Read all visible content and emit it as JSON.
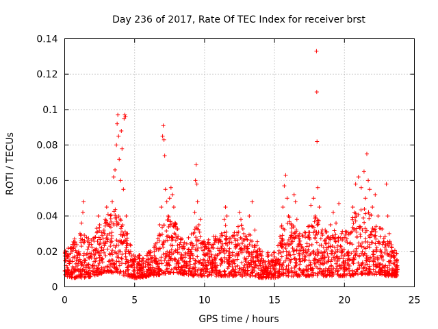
{
  "chart_data": {
    "type": "scatter",
    "title": "Day 236 of 2017, Rate Of TEC Index for receiver brst",
    "xlabel": "GPS time / hours",
    "ylabel": "ROTI / TECUs",
    "xlim": [
      0,
      25
    ],
    "ylim": [
      0,
      0.14
    ],
    "xticks": [
      0,
      5,
      10,
      15,
      20,
      25
    ],
    "xtick_labels": [
      "0",
      "5",
      "10",
      "15",
      "20",
      "25"
    ],
    "yticks": [
      0,
      0.02,
      0.04,
      0.06,
      0.08,
      0.1,
      0.12,
      0.14
    ],
    "ytick_labels": [
      "0",
      "0.02",
      "0.04",
      "0.06",
      "0.08",
      "0.1",
      "0.12",
      "0.14"
    ],
    "grid": true,
    "marker": "+",
    "color": "#ff0000",
    "series": [
      {
        "name": "ROTI",
        "points": [
          [
            0.0,
            0.009
          ],
          [
            0.1,
            0.012
          ],
          [
            0.2,
            0.018
          ],
          [
            0.3,
            0.008
          ],
          [
            0.4,
            0.015
          ],
          [
            0.5,
            0.022
          ],
          [
            0.6,
            0.01
          ],
          [
            0.7,
            0.027
          ],
          [
            0.8,
            0.013
          ],
          [
            0.9,
            0.006
          ],
          [
            1.0,
            0.02
          ],
          [
            1.1,
            0.03
          ],
          [
            1.2,
            0.036
          ],
          [
            1.3,
            0.042
          ],
          [
            1.35,
            0.048
          ],
          [
            1.4,
            0.025
          ],
          [
            1.5,
            0.015
          ],
          [
            1.6,
            0.008
          ],
          [
            1.7,
            0.011
          ],
          [
            1.8,
            0.019
          ],
          [
            1.9,
            0.024
          ],
          [
            2.0,
            0.012
          ],
          [
            2.1,
            0.018
          ],
          [
            2.2,
            0.028
          ],
          [
            2.3,
            0.033
          ],
          [
            2.4,
            0.04
          ],
          [
            2.5,
            0.035
          ],
          [
            2.6,
            0.022
          ],
          [
            2.7,
            0.016
          ],
          [
            2.8,
            0.031
          ],
          [
            2.9,
            0.038
          ],
          [
            3.0,
            0.045
          ],
          [
            3.1,
            0.041
          ],
          [
            3.2,
            0.03
          ],
          [
            3.3,
            0.025
          ],
          [
            3.4,
            0.048
          ],
          [
            3.5,
            0.062
          ],
          [
            3.6,
            0.066
          ],
          [
            3.7,
            0.08
          ],
          [
            3.75,
            0.092
          ],
          [
            3.8,
            0.097
          ],
          [
            3.85,
            0.085
          ],
          [
            3.9,
            0.072
          ],
          [
            4.0,
            0.06
          ],
          [
            4.05,
            0.088
          ],
          [
            4.1,
            0.078
          ],
          [
            4.2,
            0.055
          ],
          [
            4.25,
            0.095
          ],
          [
            4.3,
            0.097
          ],
          [
            4.35,
            0.096
          ],
          [
            4.4,
            0.04
          ],
          [
            4.5,
            0.03
          ],
          [
            4.6,
            0.02
          ],
          [
            4.7,
            0.015
          ],
          [
            4.8,
            0.012
          ],
          [
            4.9,
            0.018
          ],
          [
            5.0,
            0.01
          ],
          [
            5.2,
            0.008
          ],
          [
            5.4,
            0.012
          ],
          [
            5.6,
            0.009
          ],
          [
            5.8,
            0.014
          ],
          [
            6.0,
            0.011
          ],
          [
            6.2,
            0.016
          ],
          [
            6.4,
            0.02
          ],
          [
            6.6,
            0.025
          ],
          [
            6.8,
            0.035
          ],
          [
            6.9,
            0.045
          ],
          [
            7.0,
            0.085
          ],
          [
            7.05,
            0.091
          ],
          [
            7.1,
            0.083
          ],
          [
            7.15,
            0.074
          ],
          [
            7.2,
            0.055
          ],
          [
            7.3,
            0.048
          ],
          [
            7.4,
            0.04
          ],
          [
            7.5,
            0.05
          ],
          [
            7.6,
            0.056
          ],
          [
            7.7,
            0.052
          ],
          [
            7.8,
            0.045
          ],
          [
            7.9,
            0.035
          ],
          [
            8.0,
            0.028
          ],
          [
            8.2,
            0.022
          ],
          [
            8.4,
            0.015
          ],
          [
            8.6,
            0.018
          ],
          [
            8.8,
            0.012
          ],
          [
            9.0,
            0.02
          ],
          [
            9.2,
            0.03
          ],
          [
            9.3,
            0.042
          ],
          [
            9.35,
            0.06
          ],
          [
            9.4,
            0.069
          ],
          [
            9.45,
            0.058
          ],
          [
            9.5,
            0.048
          ],
          [
            9.6,
            0.035
          ],
          [
            9.7,
            0.038
          ],
          [
            9.8,
            0.025
          ],
          [
            10.0,
            0.015
          ],
          [
            10.2,
            0.012
          ],
          [
            10.4,
            0.02
          ],
          [
            10.6,
            0.008
          ],
          [
            10.8,
            0.018
          ],
          [
            11.0,
            0.025
          ],
          [
            11.2,
            0.03
          ],
          [
            11.4,
            0.038
          ],
          [
            11.5,
            0.045
          ],
          [
            11.6,
            0.04
          ],
          [
            11.8,
            0.025
          ],
          [
            12.0,
            0.018
          ],
          [
            12.2,
            0.026
          ],
          [
            12.4,
            0.034
          ],
          [
            12.5,
            0.042
          ],
          [
            12.6,
            0.038
          ],
          [
            12.8,
            0.03
          ],
          [
            13.0,
            0.022
          ],
          [
            13.2,
            0.04
          ],
          [
            13.4,
            0.048
          ],
          [
            13.6,
            0.032
          ],
          [
            13.8,
            0.02
          ],
          [
            14.0,
            0.012
          ],
          [
            14.2,
            0.015
          ],
          [
            14.4,
            0.01
          ],
          [
            14.6,
            0.013
          ],
          [
            14.8,
            0.018
          ],
          [
            15.0,
            0.01
          ],
          [
            15.2,
            0.014
          ],
          [
            15.4,
            0.025
          ],
          [
            15.6,
            0.045
          ],
          [
            15.7,
            0.057
          ],
          [
            15.8,
            0.063
          ],
          [
            15.9,
            0.05
          ],
          [
            16.0,
            0.04
          ],
          [
            16.2,
            0.035
          ],
          [
            16.4,
            0.052
          ],
          [
            16.5,
            0.048
          ],
          [
            16.6,
            0.038
          ],
          [
            16.8,
            0.03
          ],
          [
            17.0,
            0.022
          ],
          [
            17.2,
            0.028
          ],
          [
            17.4,
            0.034
          ],
          [
            17.6,
            0.046
          ],
          [
            17.8,
            0.05
          ],
          [
            17.9,
            0.04
          ],
          [
            18.0,
            0.133
          ],
          [
            18.02,
            0.11
          ],
          [
            18.04,
            0.082
          ],
          [
            18.1,
            0.056
          ],
          [
            18.2,
            0.045
          ],
          [
            18.4,
            0.03
          ],
          [
            18.6,
            0.02
          ],
          [
            18.8,
            0.028
          ],
          [
            19.0,
            0.035
          ],
          [
            19.2,
            0.042
          ],
          [
            19.4,
            0.036
          ],
          [
            19.6,
            0.047
          ],
          [
            19.8,
            0.03
          ],
          [
            20.0,
            0.018
          ],
          [
            20.2,
            0.025
          ],
          [
            20.4,
            0.03
          ],
          [
            20.6,
            0.045
          ],
          [
            20.8,
            0.058
          ],
          [
            21.0,
            0.062
          ],
          [
            21.2,
            0.056
          ],
          [
            21.4,
            0.065
          ],
          [
            21.5,
            0.05
          ],
          [
            21.6,
            0.075
          ],
          [
            21.7,
            0.06
          ],
          [
            21.8,
            0.055
          ],
          [
            22.0,
            0.045
          ],
          [
            22.2,
            0.052
          ],
          [
            22.4,
            0.04
          ],
          [
            22.6,
            0.033
          ],
          [
            22.8,
            0.025
          ],
          [
            23.0,
            0.058
          ],
          [
            23.1,
            0.04
          ],
          [
            23.2,
            0.03
          ],
          [
            23.4,
            0.02
          ],
          [
            23.6,
            0.015
          ],
          [
            23.8,
            0.01
          ]
        ],
        "band": {
          "x": [
            0.0,
            0.5,
            1.0,
            1.5,
            2.0,
            2.5,
            3.0,
            3.5,
            4.0,
            4.5,
            5.0,
            5.5,
            6.0,
            6.5,
            7.0,
            7.5,
            8.0,
            8.5,
            9.0,
            9.5,
            10.0,
            10.5,
            11.0,
            11.5,
            12.0,
            12.5,
            13.0,
            13.5,
            14.0,
            14.5,
            15.0,
            15.5,
            16.0,
            16.5,
            17.0,
            17.5,
            18.0,
            18.5,
            19.0,
            19.5,
            20.0,
            20.5,
            21.0,
            21.5,
            22.0,
            22.5,
            23.0,
            23.5,
            23.8
          ],
          "low": [
            0.006,
            0.005,
            0.005,
            0.005,
            0.006,
            0.007,
            0.008,
            0.008,
            0.007,
            0.006,
            0.005,
            0.005,
            0.006,
            0.006,
            0.007,
            0.008,
            0.008,
            0.007,
            0.006,
            0.006,
            0.006,
            0.006,
            0.006,
            0.006,
            0.006,
            0.006,
            0.006,
            0.006,
            0.005,
            0.005,
            0.005,
            0.006,
            0.006,
            0.006,
            0.006,
            0.006,
            0.006,
            0.006,
            0.006,
            0.006,
            0.006,
            0.006,
            0.007,
            0.007,
            0.007,
            0.007,
            0.006,
            0.006,
            0.006
          ],
          "high": [
            0.02,
            0.025,
            0.03,
            0.03,
            0.028,
            0.035,
            0.04,
            0.045,
            0.04,
            0.028,
            0.02,
            0.018,
            0.02,
            0.025,
            0.035,
            0.045,
            0.035,
            0.025,
            0.03,
            0.035,
            0.025,
            0.028,
            0.03,
            0.035,
            0.03,
            0.035,
            0.035,
            0.03,
            0.022,
            0.02,
            0.02,
            0.035,
            0.04,
            0.035,
            0.03,
            0.035,
            0.04,
            0.035,
            0.03,
            0.035,
            0.03,
            0.04,
            0.045,
            0.045,
            0.04,
            0.035,
            0.03,
            0.022,
            0.018
          ]
        }
      }
    ]
  }
}
